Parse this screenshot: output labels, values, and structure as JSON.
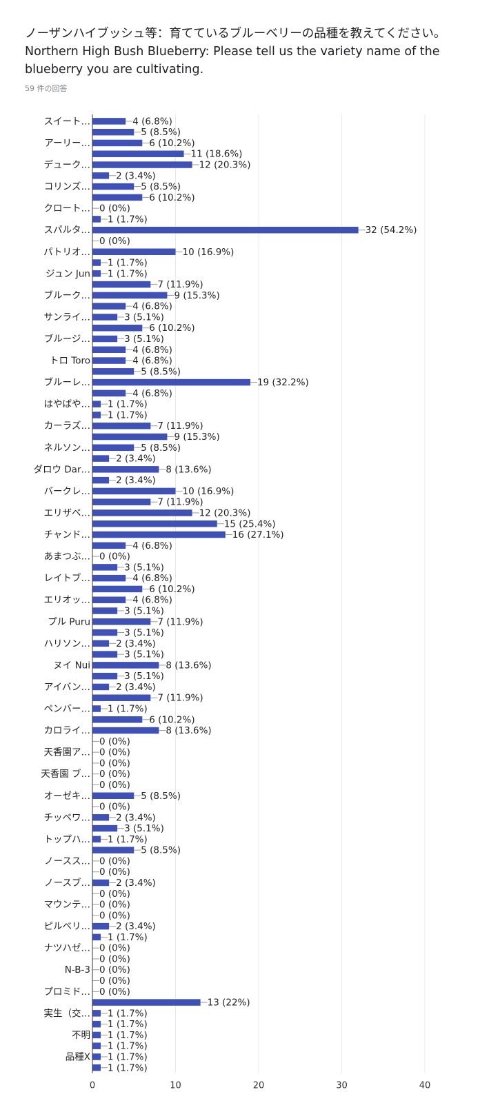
{
  "header": {
    "title": "ノーザンハイブッシュ等：育てているブルーベリーの品種を教えてください。Northern High Bush Blueberry: Please tell us the variety name of the blueberry you are cultivating.",
    "response_count": "59 件の回答"
  },
  "colors": {
    "bar": "#3f51b5",
    "grid": "#e8e8e8",
    "axis": "#333333"
  },
  "chart_data": {
    "type": "bar",
    "orientation": "horizontal",
    "xlim": [
      0,
      40
    ],
    "x_ticks": [
      0,
      10,
      20,
      30,
      40
    ],
    "grid": true,
    "categories": [
      "スイート…",
      "",
      "アーリー…",
      "",
      "デューク…",
      "",
      "コリンズ…",
      "",
      "クロート…",
      "",
      "スパルタ…",
      "",
      "パトリオ…",
      "",
      "ジュン Jun",
      "",
      "ブルーク…",
      "",
      "サンライ…",
      "",
      "ブルージ…",
      "",
      "トロ Toro",
      "",
      "ブルーレ…",
      "",
      "はやばや…",
      "",
      "カーラズ…",
      "",
      "ネルソン…",
      "",
      "ダロウ Dar…",
      "",
      "バークレ…",
      "",
      "エリザベ…",
      "",
      "チャンド…",
      "",
      "あまつぶ…",
      "",
      "レイトブ…",
      "",
      "エリオッ…",
      "",
      "プル Puru",
      "",
      "ハリソン…",
      "",
      "ヌイ Nui",
      "",
      "アイバン…",
      "",
      "ペンバー…",
      "",
      "カロライ…",
      "",
      "天香園ア…",
      "",
      "天香園 ブ…",
      "",
      "オーゼキ…",
      "",
      "チッペワ…",
      "",
      "トップハ…",
      "",
      "ノースス…",
      "",
      "ノースブ…",
      "",
      "マウンテ…",
      "",
      "ピルベリ…",
      "",
      "ナツハゼ…",
      "",
      "N-B-3",
      "",
      "プロミド…",
      "",
      "実生（交…",
      "",
      "不明",
      "",
      "品種X",
      ""
    ],
    "values": [
      4,
      5,
      6,
      11,
      12,
      2,
      5,
      6,
      0,
      1,
      32,
      0,
      10,
      1,
      1,
      7,
      9,
      4,
      3,
      6,
      3,
      4,
      4,
      5,
      19,
      4,
      1,
      1,
      7,
      9,
      5,
      2,
      8,
      2,
      10,
      7,
      12,
      15,
      16,
      4,
      0,
      3,
      4,
      6,
      4,
      3,
      7,
      3,
      2,
      3,
      8,
      3,
      2,
      7,
      1,
      6,
      8,
      0,
      0,
      0,
      0,
      0,
      5,
      0,
      2,
      3,
      1,
      5,
      0,
      0,
      2,
      0,
      0,
      0,
      2,
      1,
      0,
      0,
      0,
      0,
      0,
      13,
      1,
      1,
      1,
      1,
      1,
      1
    ],
    "value_labels": [
      "4 (6.8%)",
      "5 (8.5%)",
      "6 (10.2%)",
      "11 (18.6%)",
      "12 (20.3%)",
      "2 (3.4%)",
      "5 (8.5%)",
      "6 (10.2%)",
      "0 (0%)",
      "1 (1.7%)",
      "32 (54.2%)",
      "0 (0%)",
      "10 (16.9%)",
      "1 (1.7%)",
      "1 (1.7%)",
      "7 (11.9%)",
      "9 (15.3%)",
      "4 (6.8%)",
      "3 (5.1%)",
      "6 (10.2%)",
      "3 (5.1%)",
      "4 (6.8%)",
      "4 (6.8%)",
      "5 (8.5%)",
      "19 (32.2%)",
      "4 (6.8%)",
      "1 (1.7%)",
      "1 (1.7%)",
      "7 (11.9%)",
      "9 (15.3%)",
      "5 (8.5%)",
      "2 (3.4%)",
      "8 (13.6%)",
      "2 (3.4%)",
      "10 (16.9%)",
      "7 (11.9%)",
      "12 (20.3%)",
      "15 (25.4%)",
      "16 (27.1%)",
      "4 (6.8%)",
      "0 (0%)",
      "3 (5.1%)",
      "4 (6.8%)",
      "6 (10.2%)",
      "4 (6.8%)",
      "3 (5.1%)",
      "7 (11.9%)",
      "3 (5.1%)",
      "2 (3.4%)",
      "3 (5.1%)",
      "8 (13.6%)",
      "3 (5.1%)",
      "2 (3.4%)",
      "7 (11.9%)",
      "1 (1.7%)",
      "6 (10.2%)",
      "8 (13.6%)",
      "0 (0%)",
      "0 (0%)",
      "0 (0%)",
      "0 (0%)",
      "0 (0%)",
      "5 (8.5%)",
      "0 (0%)",
      "2 (3.4%)",
      "3 (5.1%)",
      "1 (1.7%)",
      "5 (8.5%)",
      "0 (0%)",
      "0 (0%)",
      "2 (3.4%)",
      "0 (0%)",
      "0 (0%)",
      "0 (0%)",
      "2 (3.4%)",
      "1 (1.7%)",
      "0 (0%)",
      "0 (0%)",
      "0 (0%)",
      "0 (0%)",
      "0 (0%)",
      "13 (22%)",
      "1 (1.7%)",
      "1 (1.7%)",
      "1 (1.7%)",
      "1 (1.7%)",
      "1 (1.7%)",
      "1 (1.7%)"
    ]
  }
}
